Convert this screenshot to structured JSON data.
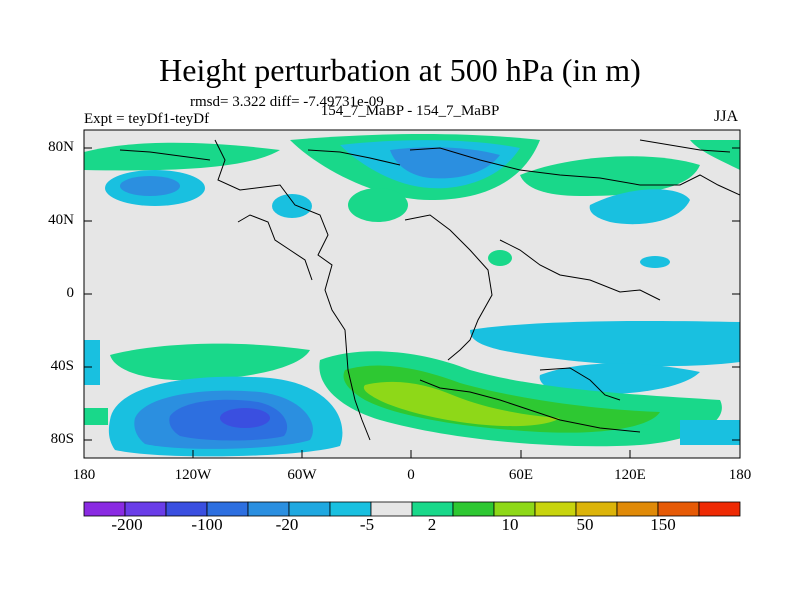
{
  "title": "Height perturbation at 500 hPa (in m)",
  "stats": "rmsd= 3.322  diff= -7.49731e-09",
  "experiment": "Expt = teyDf1-teyDf",
  "comparison": "154_7_MaBP - 154_7_MaBP",
  "season": "JJA",
  "y_ticks": [
    "80N",
    "40N",
    "0",
    "40S",
    "80S"
  ],
  "x_ticks": [
    "180",
    "120W",
    "60W",
    "0",
    "60E",
    "120E",
    "180"
  ],
  "colorbar": {
    "labels": [
      "-200",
      "-100",
      "-20",
      "-5",
      "2",
      "10",
      "50",
      "150"
    ],
    "colors": [
      "#8a2be2",
      "#6a3de8",
      "#3a4fe0",
      "#2d6fe0",
      "#2b8fe0",
      "#1fa8e0",
      "#19c0e0",
      "#e6e6e6",
      "#19d88a",
      "#2ec832",
      "#8ed818",
      "#c8d40e",
      "#dcb40a",
      "#e08a08",
      "#e65a06",
      "#ee2a04"
    ]
  },
  "map": {
    "background": "#e6e6e6",
    "regions": [
      "Arctic negative anomaly",
      "Southern Pacific negative anomaly",
      "Southern Atlantic positive anomaly"
    ]
  }
}
